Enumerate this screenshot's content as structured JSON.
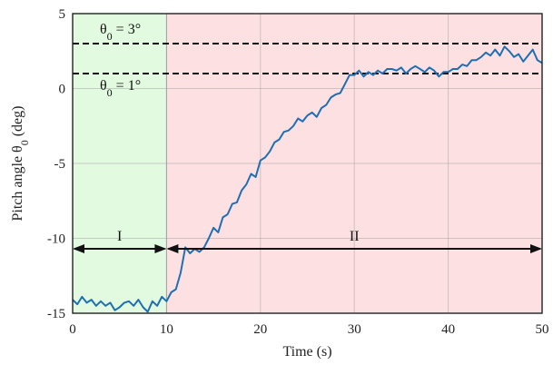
{
  "chart_data": {
    "type": "line",
    "xlabel": "Time (s)",
    "ylabel": "Pitch angle θ0 (deg)",
    "xlim": [
      0,
      50
    ],
    "ylim": [
      -15,
      5
    ],
    "xticks": [
      0,
      10,
      20,
      30,
      40,
      50
    ],
    "yticks": [
      -15,
      -10,
      -5,
      0,
      5
    ],
    "grid": true,
    "regions": [
      {
        "label": "I",
        "x": [
          0,
          10
        ],
        "color": "#e2fadf"
      },
      {
        "label": "II",
        "x": [
          10,
          50
        ],
        "color": "#fde0e2"
      }
    ],
    "reference_lines": [
      {
        "y": 3,
        "label": "θ0 = 3°"
      },
      {
        "y": 1,
        "label": "θ0 = 1°"
      }
    ],
    "arrow_y": -10.7,
    "series": [
      {
        "color": "#1f6fb4",
        "x": [
          0,
          0.5,
          1,
          1.5,
          2,
          2.5,
          3,
          3.5,
          4,
          4.5,
          5,
          5.5,
          6,
          6.5,
          7,
          7.5,
          8,
          8.5,
          9,
          9.5,
          10,
          10.5,
          11,
          11.5,
          12,
          12.5,
          13,
          13.5,
          14,
          14.5,
          15,
          15.5,
          16,
          16.5,
          17,
          17.5,
          18,
          18.5,
          19,
          19.5,
          20,
          20.5,
          21,
          21.5,
          22,
          22.5,
          23,
          23.5,
          24,
          24.5,
          25,
          25.5,
          26,
          26.5,
          27,
          27.5,
          28,
          28.5,
          29,
          29.5,
          30,
          30.5,
          31,
          31.5,
          32,
          32.5,
          33,
          33.5,
          34,
          34.5,
          35,
          35.5,
          36,
          36.5,
          37,
          37.5,
          38,
          38.5,
          39,
          39.5,
          40,
          40.5,
          41,
          41.5,
          42,
          42.5,
          43,
          43.5,
          44,
          44.5,
          45,
          45.5,
          46,
          46.5,
          47,
          47.5,
          48,
          48.5,
          49,
          49.5,
          50
        ],
        "y": [
          -14.1,
          -14.4,
          -13.9,
          -14.3,
          -14.1,
          -14.5,
          -14.2,
          -14.5,
          -14.3,
          -14.8,
          -14.6,
          -14.3,
          -14.2,
          -14.5,
          -14.1,
          -14.6,
          -14.9,
          -14.2,
          -14.5,
          -13.9,
          -14.2,
          -13.6,
          -13.4,
          -12.3,
          -10.6,
          -11.0,
          -10.7,
          -10.9,
          -10.6,
          -10.0,
          -9.3,
          -9.6,
          -8.6,
          -8.4,
          -7.7,
          -7.6,
          -6.8,
          -6.4,
          -5.7,
          -5.9,
          -4.8,
          -4.6,
          -4.2,
          -3.6,
          -3.4,
          -2.9,
          -2.8,
          -2.5,
          -2.0,
          -2.2,
          -1.8,
          -1.6,
          -1.9,
          -1.3,
          -1.1,
          -0.6,
          -0.4,
          -0.3,
          0.3,
          0.9,
          0.9,
          1.2,
          0.8,
          1.1,
          0.9,
          1.2,
          1.0,
          1.3,
          1.3,
          1.2,
          1.4,
          1.0,
          1.3,
          1.5,
          1.3,
          1.1,
          1.4,
          1.2,
          0.8,
          1.1,
          1.1,
          1.3,
          1.3,
          1.6,
          1.5,
          1.9,
          1.9,
          2.1,
          2.4,
          2.2,
          2.6,
          2.2,
          2.8,
          2.5,
          2.1,
          2.3,
          1.8,
          2.2,
          2.6,
          1.9,
          1.7
        ]
      }
    ],
    "annotations": [
      {
        "text": "I",
        "x": 5
      },
      {
        "text": "II",
        "x": 30
      }
    ]
  }
}
